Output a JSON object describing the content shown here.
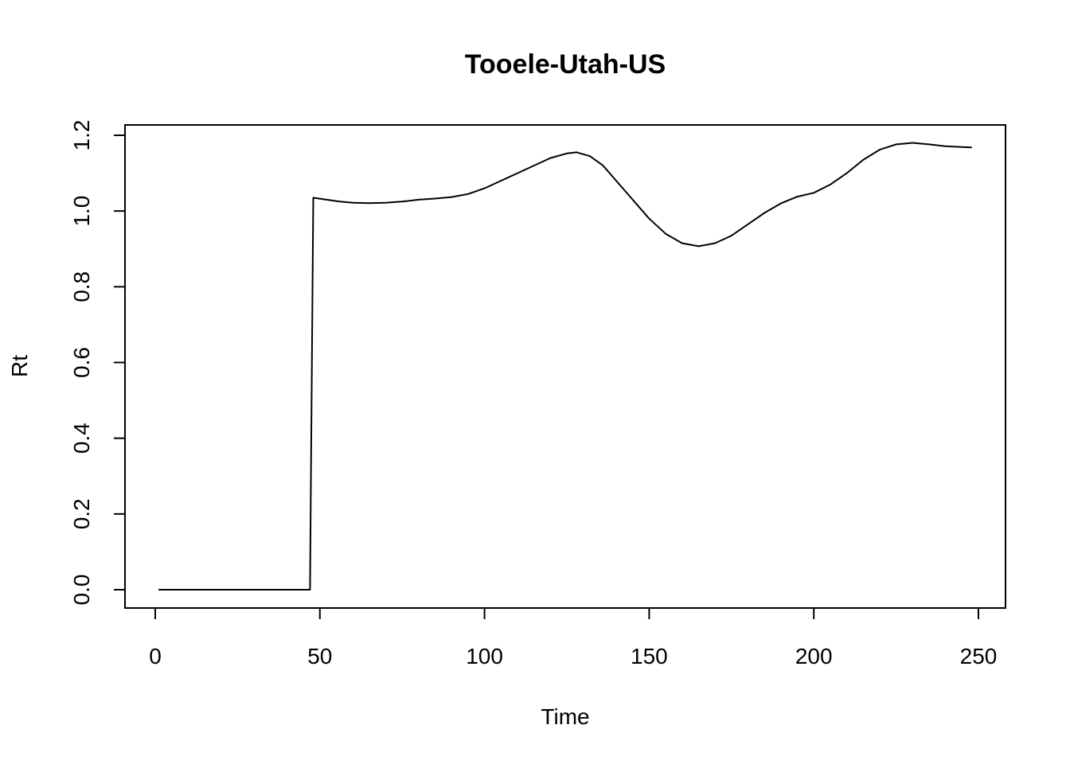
{
  "chart_data": {
    "type": "line",
    "title": "Tooele-Utah-US",
    "xlabel": "Time",
    "ylabel": "Rt",
    "xlim": [
      1,
      248
    ],
    "ylim": [
      0,
      1.2
    ],
    "x_ticks": [
      0,
      50,
      100,
      150,
      200,
      250
    ],
    "x_tick_labels": [
      "0",
      "50",
      "100",
      "150",
      "200",
      "250"
    ],
    "y_ticks": [
      0,
      0.2,
      0.4,
      0.6,
      0.8,
      1.0,
      1.2
    ],
    "y_tick_labels": [
      "0.0",
      "0.2",
      "0.4",
      "0.6",
      "0.8",
      "1.0",
      "1.2"
    ],
    "grid": false,
    "legend": "none",
    "series": [
      {
        "color": "#000000",
        "points": [
          [
            1,
            0
          ],
          [
            10,
            0
          ],
          [
            20,
            0
          ],
          [
            30,
            0
          ],
          [
            40,
            0
          ],
          [
            47,
            0
          ],
          [
            48,
            1.035
          ],
          [
            52,
            1.03
          ],
          [
            56,
            1.025
          ],
          [
            60,
            1.022
          ],
          [
            65,
            1.021
          ],
          [
            70,
            1.022
          ],
          [
            75,
            1.025
          ],
          [
            80,
            1.03
          ],
          [
            85,
            1.033
          ],
          [
            90,
            1.037
          ],
          [
            95,
            1.045
          ],
          [
            100,
            1.06
          ],
          [
            105,
            1.08
          ],
          [
            110,
            1.1
          ],
          [
            115,
            1.12
          ],
          [
            120,
            1.14
          ],
          [
            125,
            1.152
          ],
          [
            128,
            1.155
          ],
          [
            132,
            1.145
          ],
          [
            136,
            1.12
          ],
          [
            140,
            1.08
          ],
          [
            145,
            1.03
          ],
          [
            150,
            0.98
          ],
          [
            155,
            0.94
          ],
          [
            160,
            0.915
          ],
          [
            165,
            0.907
          ],
          [
            170,
            0.915
          ],
          [
            175,
            0.935
          ],
          [
            180,
            0.965
          ],
          [
            185,
            0.995
          ],
          [
            190,
            1.02
          ],
          [
            195,
            1.038
          ],
          [
            200,
            1.048
          ],
          [
            205,
            1.07
          ],
          [
            210,
            1.1
          ],
          [
            215,
            1.135
          ],
          [
            220,
            1.162
          ],
          [
            225,
            1.176
          ],
          [
            230,
            1.18
          ],
          [
            235,
            1.176
          ],
          [
            240,
            1.171
          ],
          [
            245,
            1.169
          ],
          [
            248,
            1.168
          ]
        ]
      }
    ]
  }
}
